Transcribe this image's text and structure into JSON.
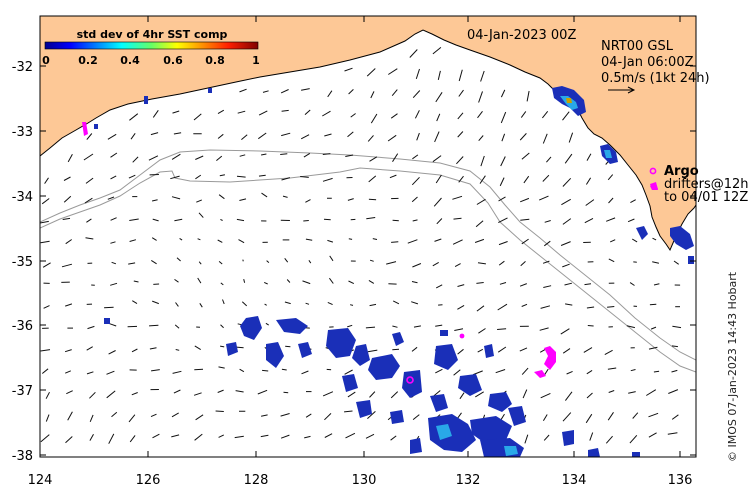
{
  "map": {
    "timestamp": "04-Jan-2023 00Z",
    "product_lines": [
      "NRT00 GSL",
      "04-Jan 06:00Z",
      "0.5m/s (1kt 24h)"
    ],
    "argo_label": "Argo",
    "drifter_lines": [
      "drifters@12h",
      "to 04/01 12Z"
    ],
    "credit": "© IMOS 07-Jan-2023 14:43 Hobart",
    "x_ticks": [
      "124",
      "126",
      "128",
      "130",
      "132",
      "134",
      "136"
    ],
    "y_ticks": [
      "-32",
      "-33",
      "-34",
      "-35",
      "-36",
      "-37",
      "-38"
    ]
  },
  "colorbar": {
    "title": "std dev of 4hr SST comp",
    "ticks": [
      "0",
      "0.2",
      "0.4",
      "0.6",
      "0.8",
      "1"
    ]
  },
  "colors": {
    "land": "#fdc896",
    "vector": "#111111",
    "bathymetry": "#9a9a9a",
    "argo": "#ff00ff",
    "cloud_blue": "#1a2fb8",
    "cloud_cyan": "#29a8e8"
  }
}
